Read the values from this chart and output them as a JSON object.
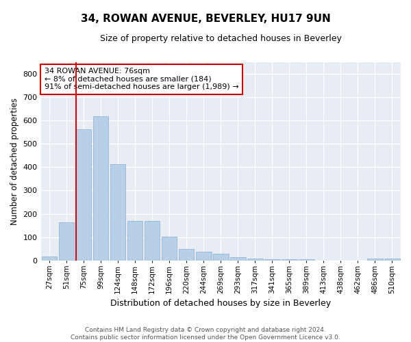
{
  "title": "34, ROWAN AVENUE, BEVERLEY, HU17 9UN",
  "subtitle": "Size of property relative to detached houses in Beverley",
  "xlabel": "Distribution of detached houses by size in Beverley",
  "ylabel": "Number of detached properties",
  "bar_color": "#b8cfe8",
  "bar_edge_color": "#8ab0d4",
  "background_color": "#e8edf4",
  "grid_color": "#ffffff",
  "fig_background": "#ffffff",
  "categories": [
    "27sqm",
    "51sqm",
    "75sqm",
    "99sqm",
    "124sqm",
    "148sqm",
    "172sqm",
    "196sqm",
    "220sqm",
    "244sqm",
    "269sqm",
    "293sqm",
    "317sqm",
    "341sqm",
    "365sqm",
    "389sqm",
    "413sqm",
    "438sqm",
    "462sqm",
    "486sqm",
    "510sqm"
  ],
  "values": [
    18,
    163,
    563,
    618,
    413,
    170,
    170,
    102,
    50,
    38,
    30,
    15,
    10,
    7,
    5,
    5,
    0,
    0,
    0,
    10,
    8
  ],
  "ylim": [
    0,
    850
  ],
  "yticks": [
    0,
    100,
    200,
    300,
    400,
    500,
    600,
    700,
    800
  ],
  "property_line_color": "#cc0000",
  "annotation_text": "34 ROWAN AVENUE: 76sqm\n← 8% of detached houses are smaller (184)\n91% of semi-detached houses are larger (1,989) →",
  "annotation_box_color": "#ffffff",
  "annotation_box_edge_color": "#cc0000",
  "footer_text": "Contains HM Land Registry data © Crown copyright and database right 2024.\nContains public sector information licensed under the Open Government Licence v3.0.",
  "fig_width": 6.0,
  "fig_height": 5.0,
  "dpi": 100
}
